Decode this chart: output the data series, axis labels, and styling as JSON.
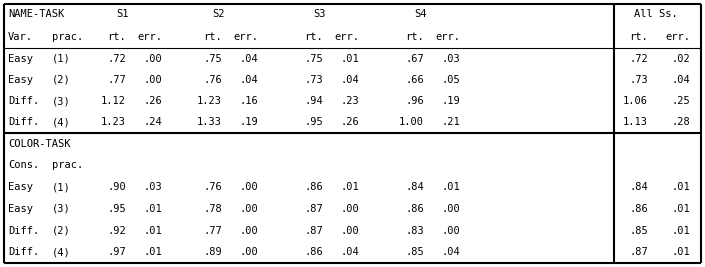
{
  "name_task_rows": [
    [
      "Easy",
      "(1)",
      ".72",
      ".00",
      ".75",
      ".04",
      ".75",
      ".01",
      ".67",
      ".03",
      ".72",
      ".02"
    ],
    [
      "Easy",
      "(2)",
      ".77",
      ".00",
      ".76",
      ".04",
      ".73",
      ".04",
      ".66",
      ".05",
      ".73",
      ".04"
    ],
    [
      "Diff.",
      "(3)",
      "1.12",
      ".26",
      "1.23",
      ".16",
      ".94",
      ".23",
      ".96",
      ".19",
      "1.06",
      ".25"
    ],
    [
      "Diff.",
      "(4)",
      "1.23",
      ".24",
      "1.33",
      ".19",
      ".95",
      ".26",
      "1.00",
      ".21",
      "1.13",
      ".28"
    ]
  ],
  "color_task_rows": [
    [
      "Easy",
      "(1)",
      ".90",
      ".03",
      ".76",
      ".00",
      ".86",
      ".01",
      ".84",
      ".01",
      ".84",
      ".01"
    ],
    [
      "Easy",
      "(3)",
      ".95",
      ".01",
      ".78",
      ".00",
      ".87",
      ".00",
      ".86",
      ".00",
      ".86",
      ".01"
    ],
    [
      "Diff.",
      "(2)",
      ".92",
      ".01",
      ".77",
      ".00",
      ".87",
      ".00",
      ".83",
      ".00",
      ".85",
      ".01"
    ],
    [
      "Diff.",
      "(4)",
      ".97",
      ".01",
      ".89",
      ".00",
      ".86",
      ".04",
      ".85",
      ".04",
      ".87",
      ".01"
    ]
  ],
  "bg_color": "#ffffff",
  "line_color": "#000000",
  "font_size": 7.5,
  "font_family": "monospace",
  "fig_width": 7.05,
  "fig_height": 2.67,
  "dpi": 100
}
